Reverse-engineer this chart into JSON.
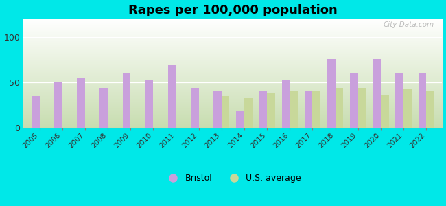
{
  "title": "Rapes per 100,000 population",
  "years": [
    2005,
    2006,
    2007,
    2008,
    2009,
    2010,
    2011,
    2012,
    2013,
    2014,
    2015,
    2016,
    2017,
    2018,
    2019,
    2020,
    2021,
    2022
  ],
  "bristol": [
    35,
    51,
    55,
    44,
    61,
    53,
    70,
    44,
    40,
    18,
    40,
    53,
    40,
    76,
    61,
    76,
    61,
    61
  ],
  "us_avg": [
    null,
    null,
    null,
    null,
    null,
    null,
    null,
    null,
    35,
    33,
    38,
    40,
    40,
    44,
    44,
    36,
    43,
    40
  ],
  "bristol_color": "#c9a0dc",
  "us_avg_color": "#c8d89a",
  "background_color": "#00e8e8",
  "ylim": [
    0,
    120
  ],
  "yticks": [
    0,
    50,
    100
  ],
  "bar_width": 0.35,
  "legend_labels": [
    "Bristol",
    "U.S. average"
  ],
  "watermark": "City-Data.com",
  "gradient_top": "#ffffff",
  "gradient_bottom": "#c8ddb0"
}
